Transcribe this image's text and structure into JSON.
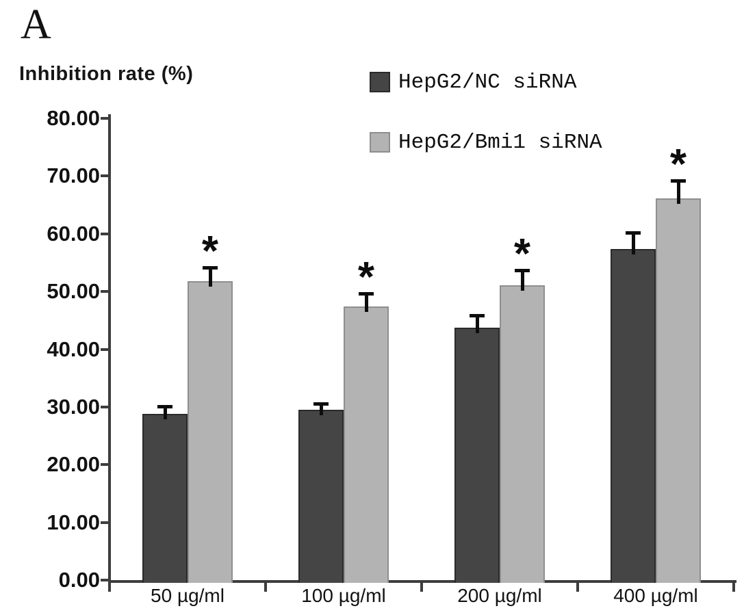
{
  "panel_label": "A",
  "chart_data": {
    "type": "bar",
    "title": "",
    "xlabel": "",
    "ylabel": "Inhibition rate (%)",
    "ylim": [
      0,
      80
    ],
    "ytick_step": 10,
    "ytick_labels": [
      "0.00",
      "10.00",
      "20.00",
      "30.00",
      "40.00",
      "50.00",
      "60.00",
      "70.00",
      "80.00"
    ],
    "categories": [
      "50 µg/ml",
      "100 µg/ml",
      "200 µg/ml",
      "400 µg/ml"
    ],
    "series": [
      {
        "name": "HepG2/NC siRNA",
        "color": "#454545",
        "border_color": "#2a2a2a",
        "values": [
          28.8,
          29.5,
          43.7,
          57.4
        ],
        "errors": [
          1.5,
          1.3,
          2.4,
          3.0
        ],
        "significance": [
          "",
          "",
          "",
          ""
        ]
      },
      {
        "name": "HepG2/Bmi1 siRNA",
        "color": "#b3b3b3",
        "border_color": "#8e8e8e",
        "values": [
          51.8,
          47.4,
          51.1,
          66.1
        ],
        "errors": [
          2.6,
          2.5,
          2.8,
          3.4
        ],
        "significance": [
          "*",
          "*",
          "*",
          "*"
        ]
      }
    ],
    "legend_position": "top-right",
    "grid": false,
    "error_bars": "upper",
    "significance_marker": "*",
    "colors": {
      "axis": "#3d3d3d",
      "error_bar": "#0d0d0d",
      "background": "#ffffff",
      "text": "#121212"
    }
  }
}
